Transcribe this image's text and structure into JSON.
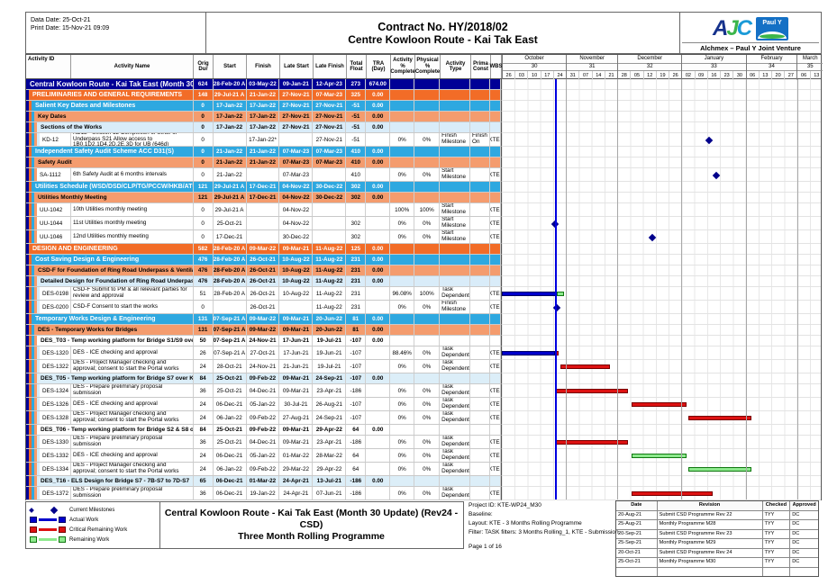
{
  "header": {
    "data_date": "Data Date: 25-Oct-21",
    "print_date": "Print Date: 15-Nov-21 09:09",
    "contract": "Contract No. HY/2018/02",
    "project": "Centre Kowloon Route - Kai Tak East",
    "jv": "Alchmex – Paul Y Joint Venture",
    "logo_ajc": "AJC",
    "logo_pauly": "Paul Y"
  },
  "columns": [
    "Activity ID",
    "Activity Name",
    "Orig Dur",
    "Start",
    "Finish",
    "Late Start",
    "Late Finish",
    "Total Float",
    "TRA (Day)",
    "Activity % Complete",
    "Physical % Complete",
    "Activity Type",
    "Prima Const",
    "WBS"
  ],
  "timeline": {
    "start": "2021-09-26",
    "data_date": "2021-10-25",
    "total_days": 175,
    "months": [
      {
        "name": "October",
        "num": "30",
        "weeks": [
          "26",
          "03",
          "10",
          "17",
          "24"
        ]
      },
      {
        "name": "November",
        "num": "31",
        "weeks": [
          "31",
          "07",
          "14",
          "21"
        ]
      },
      {
        "name": "December",
        "num": "32",
        "weeks": [
          "28",
          "05",
          "12",
          "19",
          "26"
        ]
      },
      {
        "name": "January",
        "num": "33",
        "weeks": [
          "02",
          "09",
          "16",
          "23",
          "30"
        ]
      },
      {
        "name": "February",
        "num": "34",
        "weeks": [
          "06",
          "13",
          "20",
          "27"
        ]
      },
      {
        "name": "March",
        "num": "35",
        "weeks": [
          "06",
          "13"
        ]
      }
    ]
  },
  "colors": {
    "navy": "#000096",
    "orange": "#F26C27",
    "blue": "#2EA8E0",
    "lt_orange": "#F49C6E",
    "pale_blue": "#D9ECF9",
    "actual": "#0000CC",
    "critical": "#DD1111",
    "remaining": "#8CE98C",
    "remaining_border": "#117711",
    "milestone": "#00008B",
    "data_date_line": "#0000E0"
  },
  "rows": [
    {
      "t": "l0",
      "sd": 0,
      "name": "Central Kowloon Route - Kai Tak East (Month 30 Update) (Re",
      "od": "624",
      "s": "28-Feb-20 A",
      "f": "03-May-22",
      "ls": "09-Jan-21",
      "lf": "12-Apr-23",
      "tf": "273",
      "tra": "674.00"
    },
    {
      "t": "l1",
      "sd": 1,
      "name": "PRELIMINARIES AND GENERAL REQUIREMENTS",
      "od": "148",
      "s": "29-Jul-21 A",
      "f": "21-Jan-22",
      "ls": "27-Nov-21",
      "lf": "07-Mar-23",
      "tf": "325",
      "tra": "0.00"
    },
    {
      "t": "l2",
      "sd": 2,
      "name": "Salient Key Dates and Milestones",
      "od": "0",
      "s": "17-Jan-22",
      "f": "17-Jan-22",
      "ls": "27-Nov-21",
      "lf": "27-Nov-21",
      "tf": "-51",
      "tra": "0.00"
    },
    {
      "t": "l3",
      "sd": 3,
      "name": "Key Dates",
      "od": "0",
      "s": "17-Jan-22",
      "f": "17-Jan-22",
      "ls": "27-Nov-21",
      "lf": "27-Nov-21",
      "tf": "-51",
      "tra": "0.00"
    },
    {
      "t": "l4",
      "sd": 4,
      "name": "Sections of the Works",
      "od": "0",
      "s": "17-Jan-22",
      "f": "17-Jan-22",
      "ls": "27-Nov-21",
      "lf": "27-Nov-21",
      "tf": "-51",
      "tra": "0.00"
    },
    {
      "t": "act",
      "sd": 5,
      "id": "KD-12",
      "name": "KD12 - Section 12 Completion of Strut. of Underpass S21 Allow access to 1B0,1D2,1D4,2D,2E,3D for UB (646d)",
      "od": "0",
      "s": "",
      "f": "17-Jan-22*",
      "ls": "",
      "lf": "27-Nov-21",
      "tf": "-51",
      "tra": "",
      "ap": "0%",
      "pp": "0%",
      "at": "Finish Milestone",
      "pc": "Finish On",
      "wbs": "KTE-",
      "g": [
        {
          "t": "ms",
          "d": "2022-01-17"
        }
      ]
    },
    {
      "t": "l2",
      "sd": 2,
      "name": "Independent Safety Audit Scheme ACC D31(S)",
      "od": "0",
      "s": "21-Jan-22",
      "f": "21-Jan-22",
      "ls": "07-Mar-23",
      "lf": "07-Mar-23",
      "tf": "410",
      "tra": "0.00"
    },
    {
      "t": "l3",
      "sd": 3,
      "name": "Safety Audit",
      "od": "0",
      "s": "21-Jan-22",
      "f": "21-Jan-22",
      "ls": "07-Mar-23",
      "lf": "07-Mar-23",
      "tf": "410",
      "tra": "0.00"
    },
    {
      "t": "act",
      "sd": 4,
      "id": "SA-1112",
      "name": "6th Safety Audit at 6 months intervals",
      "od": "0",
      "s": "21-Jan-22",
      "f": "",
      "ls": "07-Mar-23",
      "lf": "",
      "tf": "410",
      "tra": "",
      "ap": "0%",
      "pp": "0%",
      "at": "Start Milestone",
      "pc": "",
      "wbs": "KTE-",
      "g": [
        {
          "t": "ms",
          "d": "2022-01-21"
        }
      ]
    },
    {
      "t": "l2",
      "sd": 2,
      "name": "Utilities Schedule (WSD/DSD/CLP/TG/PCCW/HKB/ATC/KT Tur",
      "od": "121",
      "s": "29-Jul-21 A",
      "f": "17-Dec-21",
      "ls": "04-Nov-22",
      "lf": "30-Dec-22",
      "tf": "302",
      "tra": "0.00"
    },
    {
      "t": "l3",
      "sd": 3,
      "name": "Utilities Monthly Meeting",
      "od": "121",
      "s": "29-Jul-21 A",
      "f": "17-Dec-21",
      "ls": "04-Nov-22",
      "lf": "30-Dec-22",
      "tf": "302",
      "tra": "0.00"
    },
    {
      "t": "act",
      "sd": 4,
      "id": "UU-1042",
      "name": "10th  Utilities monthly meeting",
      "od": "0",
      "s": "29-Jul-21 A",
      "f": "",
      "ls": "04-Nov-22",
      "lf": "",
      "tf": "",
      "tra": "",
      "ap": "100%",
      "pp": "100%",
      "at": "Start Milestone",
      "pc": "",
      "wbs": "KTE-",
      "g": []
    },
    {
      "t": "act",
      "sd": 4,
      "id": "UU-1044",
      "name": "11st  Utilities monthly meeting",
      "od": "0",
      "s": "25-Oct-21",
      "f": "",
      "ls": "04-Nov-22",
      "lf": "",
      "tf": "302",
      "tra": "",
      "ap": "0%",
      "pp": "0%",
      "at": "Start Milestone",
      "pc": "",
      "wbs": "KTE-",
      "g": [
        {
          "t": "ms",
          "d": "2021-10-25"
        }
      ]
    },
    {
      "t": "act",
      "sd": 4,
      "id": "UU-1046",
      "name": "12nd Utilities monthly meeting",
      "od": "0",
      "s": "17-Dec-21",
      "f": "",
      "ls": "30-Dec-22",
      "lf": "",
      "tf": "302",
      "tra": "",
      "ap": "0%",
      "pp": "0%",
      "at": "Start Milestone",
      "pc": "",
      "wbs": "KTE-",
      "g": [
        {
          "t": "ms",
          "d": "2021-12-17"
        }
      ]
    },
    {
      "t": "l1",
      "sd": 1,
      "name": "DESIGN AND ENGINEERING",
      "od": "582",
      "s": "28-Feb-20 A",
      "f": "09-Mar-22",
      "ls": "09-Mar-21",
      "lf": "11-Aug-22",
      "tf": "125",
      "tra": "0.00"
    },
    {
      "t": "l2",
      "sd": 2,
      "name": "Cost Saving Design & Engineering",
      "od": "476",
      "s": "28-Feb-20 A",
      "f": "26-Oct-21",
      "ls": "10-Aug-22",
      "lf": "11-Aug-22",
      "tf": "231",
      "tra": "0.00"
    },
    {
      "t": "l3",
      "sd": 3,
      "name": "CSD-F for Foundation of Ring Road Underpass & Ventilation Adit",
      "od": "476",
      "s": "28-Feb-20 A",
      "f": "26-Oct-21",
      "ls": "10-Aug-22",
      "lf": "11-Aug-22",
      "tf": "231",
      "tra": "0.00"
    },
    {
      "t": "l4",
      "sd": 4,
      "name": "Detailed Design for Foundation of Ring Road Underpass & Ventilation Adit",
      "od": "476",
      "s": "28-Feb-20 A",
      "f": "26-Oct-21",
      "ls": "10-Aug-22",
      "lf": "11-Aug-22",
      "tf": "231",
      "tra": "0.00"
    },
    {
      "t": "act",
      "sd": 5,
      "id": "DES-0198",
      "name": "CSD-F Submit to PM & all relevant parties for review and approval",
      "od": "51",
      "s": "28-Feb-20 A",
      "f": "26-Oct-21",
      "ls": "10-Aug-22",
      "lf": "11-Aug-22",
      "tf": "231",
      "tra": "",
      "ap": "96.08%",
      "pp": "100%",
      "at": "Task Dependent",
      "pc": "",
      "wbs": "KTE-",
      "g": [
        {
          "t": "bar",
          "c": "actual",
          "a": "2021-09-26",
          "b": "2021-10-26"
        },
        {
          "t": "bar",
          "c": "rem",
          "a": "2021-10-26",
          "b": "2021-10-30"
        }
      ]
    },
    {
      "t": "act",
      "sd": 5,
      "id": "DES-0200",
      "name": "CSD-F Consent to start the works",
      "od": "0",
      "s": "",
      "f": "26-Oct-21",
      "ls": "",
      "lf": "11-Aug-22",
      "tf": "231",
      "tra": "",
      "ap": "0%",
      "pp": "0%",
      "at": "Finish Milestone",
      "pc": "",
      "wbs": "KTE-",
      "g": [
        {
          "t": "ms",
          "d": "2021-10-26"
        }
      ]
    },
    {
      "t": "l2",
      "sd": 2,
      "name": "Temporary Works Design & Engineering",
      "od": "131",
      "s": "07-Sep-21 A",
      "f": "09-Mar-22",
      "ls": "09-Mar-21",
      "lf": "20-Jun-22",
      "tf": "81",
      "tra": "0.00"
    },
    {
      "t": "l3",
      "sd": 3,
      "name": "DES - Temporary Works for Bridges",
      "od": "131",
      "s": "07-Sep-21 A",
      "f": "09-Mar-22",
      "ls": "09-Mar-21",
      "lf": "20-Jun-22",
      "tf": "81",
      "tra": "0.00"
    },
    {
      "t": "tw",
      "sd": 4,
      "name": "DES_T03 - Temp working platform for Bridge S1/S9 over Kai Fuk Road",
      "od": "50",
      "s": "07-Sep-21 A",
      "f": "24-Nov-21",
      "ls": "17-Jun-21",
      "lf": "19-Jul-21",
      "tf": "-107",
      "tra": "0.00"
    },
    {
      "t": "act",
      "sd": 5,
      "id": "DES-1320",
      "name": "DES - ICE checking and approval",
      "od": "26",
      "s": "07-Sep-21 A",
      "f": "27-Oct-21",
      "ls": "17-Jun-21",
      "lf": "19-Jun-21",
      "tf": "-107",
      "tra": "",
      "ap": "88.46%",
      "pp": "0%",
      "at": "Task Dependent",
      "pc": "",
      "wbs": "KTE-",
      "g": [
        {
          "t": "bar",
          "c": "actual",
          "a": "2021-09-26",
          "b": "2021-10-25"
        },
        {
          "t": "bar",
          "c": "crit",
          "a": "2021-10-25",
          "b": "2021-10-27"
        }
      ]
    },
    {
      "t": "act",
      "sd": 5,
      "id": "DES-1322",
      "name": "DES - Project Manager checking and approval; consent to start the Portal works",
      "od": "24",
      "s": "28-Oct-21",
      "f": "24-Nov-21",
      "ls": "21-Jun-21",
      "lf": "19-Jul-21",
      "tf": "-107",
      "tra": "",
      "ap": "0%",
      "pp": "0%",
      "at": "Task Dependent",
      "pc": "",
      "wbs": "KTE-",
      "g": [
        {
          "t": "bar",
          "c": "crit",
          "a": "2021-10-28",
          "b": "2021-11-24"
        }
      ]
    },
    {
      "t": "tb",
      "sd": 4,
      "name": "DES_T05 - Temp working platform for Bridge S7 over Kai Cheung Slip Roa",
      "od": "84",
      "s": "25-Oct-21",
      "f": "09-Feb-22",
      "ls": "09-Mar-21",
      "lf": "24-Sep-21",
      "tf": "-107",
      "tra": "0.00"
    },
    {
      "t": "act",
      "sd": 5,
      "id": "DES-1324",
      "name": "DES  - Prepare preliminary proposal submission",
      "od": "36",
      "s": "25-Oct-21",
      "f": "04-Dec-21",
      "ls": "09-Mar-21",
      "lf": "23-Apr-21",
      "tf": "-186",
      "tra": "",
      "ap": "0%",
      "pp": "0%",
      "at": "Task Dependent",
      "pc": "",
      "wbs": "KTE-",
      "g": [
        {
          "t": "bar",
          "c": "crit",
          "a": "2021-10-25",
          "b": "2021-12-04"
        }
      ]
    },
    {
      "t": "act",
      "sd": 5,
      "id": "DES-1326",
      "name": "DES - ICE checking and approval",
      "od": "24",
      "s": "06-Dec-21",
      "f": "05-Jan-22",
      "ls": "30-Jul-21",
      "lf": "26-Aug-21",
      "tf": "-107",
      "tra": "",
      "ap": "0%",
      "pp": "0%",
      "at": "Task Dependent",
      "pc": "",
      "wbs": "KTE-",
      "g": [
        {
          "t": "bar",
          "c": "crit",
          "a": "2021-12-06",
          "b": "2022-01-05"
        }
      ]
    },
    {
      "t": "act",
      "sd": 5,
      "id": "DES-1328",
      "name": "DES - Project Manager checking and approval; consent to start the Portal works",
      "od": "24",
      "s": "06-Jan-22",
      "f": "09-Feb-22",
      "ls": "27-Aug-21",
      "lf": "24-Sep-21",
      "tf": "-107",
      "tra": "",
      "ap": "0%",
      "pp": "0%",
      "at": "Task Dependent",
      "pc": "",
      "wbs": "KTE-",
      "g": [
        {
          "t": "bar",
          "c": "crit",
          "a": "2022-01-06",
          "b": "2022-02-09"
        }
      ]
    },
    {
      "t": "tw",
      "sd": 4,
      "name": "DES_T06 - Temp working platform for Bridge S2 & S8 over KF Rd & KC Rd",
      "od": "84",
      "s": "25-Oct-21",
      "f": "09-Feb-22",
      "ls": "09-Mar-21",
      "lf": "29-Apr-22",
      "tf": "64",
      "tra": "0.00"
    },
    {
      "t": "act",
      "sd": 5,
      "id": "DES-1330",
      "name": "DES  - Prepare preliminary proposal submission",
      "od": "36",
      "s": "25-Oct-21",
      "f": "04-Dec-21",
      "ls": "09-Mar-21",
      "lf": "23-Apr-21",
      "tf": "-186",
      "tra": "",
      "ap": "0%",
      "pp": "0%",
      "at": "Task Dependent",
      "pc": "",
      "wbs": "KTE-",
      "g": [
        {
          "t": "bar",
          "c": "crit",
          "a": "2021-10-25",
          "b": "2021-12-04"
        }
      ]
    },
    {
      "t": "act",
      "sd": 5,
      "id": "DES-1332",
      "name": "DES - ICE checking and approval",
      "od": "24",
      "s": "06-Dec-21",
      "f": "05-Jan-22",
      "ls": "01-Mar-22",
      "lf": "28-Mar-22",
      "tf": "64",
      "tra": "",
      "ap": "0%",
      "pp": "0%",
      "at": "Task Dependent",
      "pc": "",
      "wbs": "KTE-",
      "g": [
        {
          "t": "bar",
          "c": "rem",
          "a": "2021-12-06",
          "b": "2022-01-05"
        }
      ]
    },
    {
      "t": "act",
      "sd": 5,
      "id": "DES-1334",
      "name": "DES - Project Manager checking and approval; consent to start the Portal works",
      "od": "24",
      "s": "06-Jan-22",
      "f": "09-Feb-22",
      "ls": "29-Mar-22",
      "lf": "29-Apr-22",
      "tf": "64",
      "tra": "",
      "ap": "0%",
      "pp": "0%",
      "at": "Task Dependent",
      "pc": "",
      "wbs": "KTE-",
      "g": [
        {
          "t": "bar",
          "c": "rem",
          "a": "2022-01-06",
          "b": "2022-02-09"
        }
      ]
    },
    {
      "t": "tb",
      "sd": 4,
      "name": "DES_T16 - ELS Design for Bridge S7 - 7B-S7 to 7D-S7",
      "od": "65",
      "s": "06-Dec-21",
      "f": "01-Mar-22",
      "ls": "24-Apr-21",
      "lf": "13-Jul-21",
      "tf": "-186",
      "tra": "0.00"
    },
    {
      "t": "act",
      "sd": 5,
      "id": "DES-1372",
      "name": "DES - Prepare preliminary proposal submission",
      "od": "36",
      "s": "06-Dec-21",
      "f": "19-Jan-22",
      "ls": "24-Apr-21",
      "lf": "07-Jun-21",
      "tf": "-186",
      "tra": "",
      "ap": "0%",
      "pp": "0%",
      "at": "Task Dependent",
      "pc": "",
      "wbs": "KTE-",
      "g": [
        {
          "t": "bar",
          "c": "crit",
          "a": "2021-12-06",
          "b": "2022-01-19"
        }
      ]
    }
  ],
  "legend": [
    {
      "shape": "milestone",
      "label": "Current Milestones"
    },
    {
      "shape": "bar",
      "color": "#0000CC",
      "border": "#000066",
      "label": "Actual Work"
    },
    {
      "shape": "bar",
      "color": "#DD1111",
      "border": "#770000",
      "label": "Critical Remaining Work"
    },
    {
      "shape": "bar",
      "color": "#8CE98C",
      "border": "#117711",
      "label": "Remaining Work"
    }
  ],
  "footer": {
    "title_line1": "Central Kowloon Route - Kai Tak East (Month 30 Update) (Rev24 - CSD)",
    "title_line2": "Three Month Rolling Programme",
    "info": [
      "Project ID: KTE-WP24_M30",
      "Baseline:",
      "Layout: KTE - 3 Months Rolling Programme",
      "Filter: TASK filters: 3 Months Rolling_1, KTE - Submission."
    ],
    "page": "Page 1 of 16"
  },
  "revisions": {
    "headers": [
      "Date",
      "Revision",
      "Checked",
      "Approved"
    ],
    "rows": [
      [
        "20-Aug-21",
        "Submit CSD Programme Rev 22",
        "TYY",
        "DC"
      ],
      [
        "25-Aug-21",
        "Monthly Programme M28",
        "TYY",
        "DC"
      ],
      [
        "20-Sep-21",
        "Submit CSD Programme Rev 23",
        "TYY",
        "DC"
      ],
      [
        "25-Sep-21",
        "Monthly Programme M29",
        "TYY",
        "DC"
      ],
      [
        "20-Oct-21",
        "Submit CSD Programme Rev 24",
        "TYY",
        "DC"
      ],
      [
        "25-Oct-21",
        "Monthly Programme M30",
        "TYY",
        "DC"
      ],
      [
        "",
        "",
        "",
        ""
      ]
    ]
  }
}
